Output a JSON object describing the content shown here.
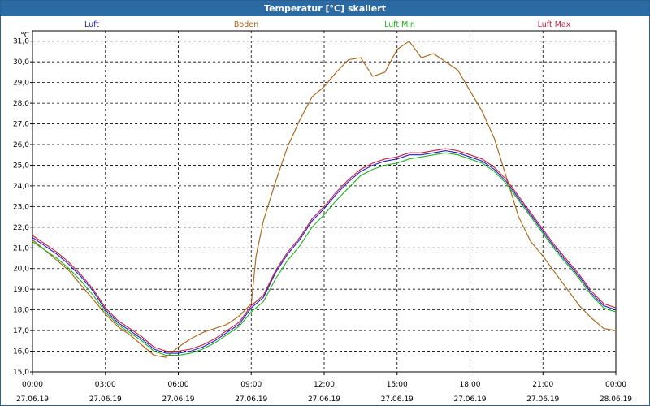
{
  "window": {
    "title": "Temperatur [°C] skaliert"
  },
  "chart_data": {
    "type": "line",
    "title": "Temperatur [°C] skaliert",
    "ylabel": "°C",
    "xlabel": "",
    "ylim": [
      15.0,
      31.5
    ],
    "xlim": [
      0,
      24
    ],
    "grid": true,
    "legend": "top",
    "y_ticks": [
      "15,0",
      "16,0",
      "17,0",
      "18,0",
      "19,0",
      "20,0",
      "21,0",
      "22,0",
      "23,0",
      "24,0",
      "25,0",
      "26,0",
      "27,0",
      "28,0",
      "29,0",
      "30,0",
      "31,0"
    ],
    "x_ticks": [
      {
        "time": "00:00",
        "date": "27.06.19"
      },
      {
        "time": "03:00",
        "date": "27.06.19"
      },
      {
        "time": "06:00",
        "date": "27.06.19"
      },
      {
        "time": "09:00",
        "date": "27.06.19"
      },
      {
        "time": "12:00",
        "date": "27.06.19"
      },
      {
        "time": "15:00",
        "date": "27.06.19"
      },
      {
        "time": "18:00",
        "date": "27.06.19"
      },
      {
        "time": "21:00",
        "date": "27.06.19"
      },
      {
        "time": "00:00",
        "date": "28.06.19"
      }
    ],
    "series": [
      {
        "name": "Luft",
        "color": "#1f1fc8",
        "x": [
          0,
          0.5,
          1,
          1.5,
          2,
          2.5,
          3,
          3.5,
          4,
          4.5,
          5,
          5.5,
          6,
          6.5,
          7,
          7.5,
          8,
          8.5,
          9,
          9.5,
          10,
          10.5,
          11,
          11.5,
          12,
          12.5,
          13,
          13.5,
          14,
          14.5,
          15,
          15.5,
          16,
          16.5,
          17,
          17.5,
          18,
          18.5,
          19,
          19.5,
          20,
          20.5,
          21,
          21.5,
          22,
          22.5,
          23,
          23.5,
          24
        ],
        "values": [
          21.5,
          21.1,
          20.7,
          20.2,
          19.6,
          18.9,
          18.0,
          17.4,
          17.0,
          16.6,
          16.1,
          15.9,
          15.9,
          16.0,
          16.2,
          16.5,
          16.9,
          17.3,
          18.1,
          18.6,
          19.8,
          20.7,
          21.4,
          22.3,
          22.9,
          23.6,
          24.2,
          24.7,
          25.0,
          25.2,
          25.3,
          25.5,
          25.5,
          25.6,
          25.7,
          25.6,
          25.4,
          25.2,
          24.8,
          24.2,
          23.4,
          22.6,
          21.8,
          21.0,
          20.3,
          19.6,
          18.8,
          18.2,
          18.0
        ]
      },
      {
        "name": "Boden",
        "color": "#a86010",
        "x": [
          0,
          0.5,
          1,
          1.5,
          2,
          2.5,
          3,
          3.5,
          4,
          4.5,
          5,
          5.5,
          6,
          6.5,
          7,
          7.5,
          8,
          8.5,
          9,
          9.2,
          9.5,
          10,
          10.5,
          11,
          11.5,
          12,
          12.5,
          13,
          13.5,
          14,
          14.5,
          15,
          15.5,
          16,
          16.5,
          17,
          17.5,
          18,
          18.5,
          19,
          19.5,
          20,
          20.5,
          21,
          21.5,
          22,
          22.5,
          23,
          23.5,
          24
        ],
        "values": [
          21.4,
          20.9,
          20.4,
          19.9,
          19.2,
          18.5,
          17.8,
          17.2,
          16.8,
          16.3,
          15.8,
          15.7,
          16.2,
          16.6,
          16.9,
          17.1,
          17.3,
          17.7,
          18.3,
          20.6,
          22.3,
          24.2,
          25.9,
          27.2,
          28.3,
          28.8,
          29.5,
          30.1,
          30.2,
          29.3,
          29.5,
          30.6,
          31.0,
          30.2,
          30.4,
          30.0,
          29.6,
          28.6,
          27.6,
          26.3,
          24.4,
          22.5,
          21.3,
          20.6,
          19.8,
          19.0,
          18.2,
          17.6,
          17.1,
          17.0
        ]
      },
      {
        "name": "Luft Min",
        "color": "#1eb01e",
        "x": [
          0,
          0.5,
          1,
          1.5,
          2,
          2.5,
          3,
          3.5,
          4,
          4.5,
          5,
          5.5,
          6,
          6.5,
          7,
          7.5,
          8,
          8.5,
          9,
          9.5,
          10,
          10.5,
          11,
          11.5,
          12,
          12.5,
          13,
          13.5,
          14,
          14.5,
          15,
          15.5,
          16,
          16.5,
          17,
          17.5,
          18,
          18.5,
          19,
          19.5,
          20,
          20.5,
          21,
          21.5,
          22,
          22.5,
          23,
          23.5,
          24
        ],
        "values": [
          21.3,
          20.9,
          20.5,
          20.0,
          19.4,
          18.7,
          17.9,
          17.3,
          16.9,
          16.5,
          16.0,
          15.8,
          15.8,
          15.9,
          16.1,
          16.4,
          16.8,
          17.2,
          17.9,
          18.4,
          19.5,
          20.4,
          21.1,
          22.0,
          22.6,
          23.3,
          23.9,
          24.5,
          24.8,
          25.0,
          25.1,
          25.3,
          25.4,
          25.5,
          25.6,
          25.5,
          25.3,
          25.1,
          24.7,
          24.1,
          23.3,
          22.5,
          21.7,
          20.9,
          20.2,
          19.5,
          18.7,
          18.1,
          17.9
        ]
      },
      {
        "name": "Luft Max",
        "color": "#c81e3c",
        "x": [
          0,
          0.5,
          1,
          1.5,
          2,
          2.5,
          3,
          3.5,
          4,
          4.5,
          5,
          5.5,
          6,
          6.5,
          7,
          7.5,
          8,
          8.5,
          9,
          9.5,
          10,
          10.5,
          11,
          11.5,
          12,
          12.5,
          13,
          13.5,
          14,
          14.5,
          15,
          15.5,
          16,
          16.5,
          17,
          17.5,
          18,
          18.5,
          19,
          19.5,
          20,
          20.5,
          21,
          21.5,
          22,
          22.5,
          23,
          23.5,
          24
        ],
        "values": [
          21.6,
          21.2,
          20.8,
          20.3,
          19.7,
          19.0,
          18.1,
          17.5,
          17.1,
          16.7,
          16.2,
          16.0,
          16.0,
          16.1,
          16.3,
          16.6,
          17.0,
          17.4,
          18.2,
          18.7,
          19.9,
          20.8,
          21.5,
          22.4,
          23.0,
          23.7,
          24.3,
          24.8,
          25.1,
          25.3,
          25.4,
          25.6,
          25.6,
          25.7,
          25.8,
          25.7,
          25.5,
          25.3,
          24.9,
          24.3,
          23.5,
          22.7,
          21.9,
          21.1,
          20.4,
          19.7,
          18.9,
          18.3,
          18.1
        ]
      }
    ]
  }
}
